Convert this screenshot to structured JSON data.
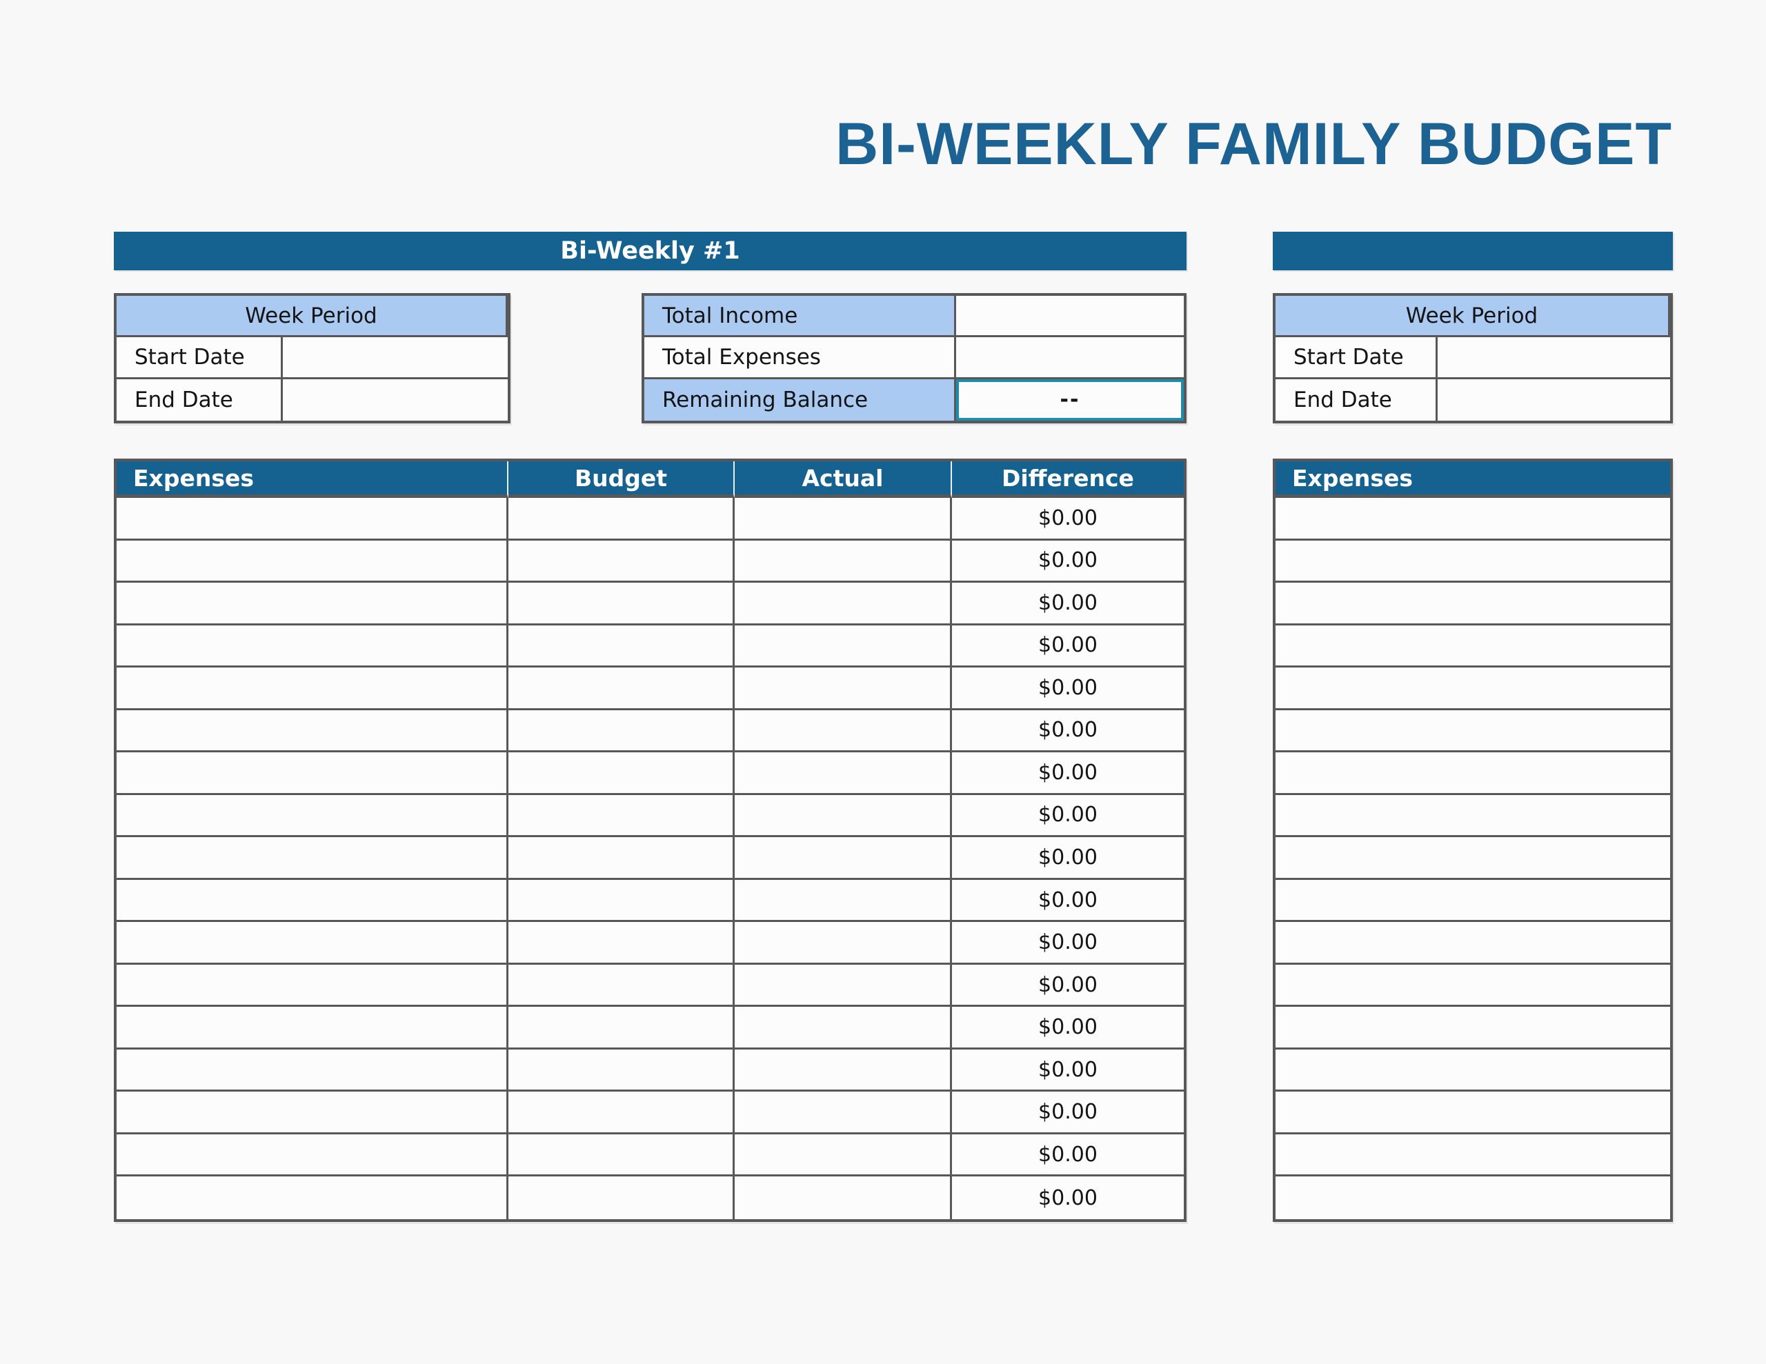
{
  "page": {
    "title": "BI-WEEKLY FAMILY BUDGET"
  },
  "colors": {
    "header_blue": "#15618F",
    "label_light_blue": "#ABCAF2",
    "title_blue": "#1C6293",
    "border_gray": "#58585A",
    "selection_teal": "#1F8DA9",
    "cell_bg": "#FCFCFC"
  },
  "section1": {
    "header": "Bi-Weekly #1",
    "week_period": {
      "title": "Week Period",
      "rows": [
        {
          "label": "Start Date",
          "value": ""
        },
        {
          "label": "End Date",
          "value": ""
        }
      ]
    },
    "summary": {
      "rows": [
        {
          "label": "Total Income",
          "value": ""
        },
        {
          "label": "Total Expenses",
          "value": ""
        },
        {
          "label": "Remaining Balance",
          "value": "--"
        }
      ]
    },
    "expenses_table": {
      "headers": [
        "Expenses",
        "Budget",
        "Actual",
        "Difference"
      ],
      "rows": [
        {
          "expense": "",
          "budget": "",
          "actual": "",
          "difference": "$0.00"
        },
        {
          "expense": "",
          "budget": "",
          "actual": "",
          "difference": "$0.00"
        },
        {
          "expense": "",
          "budget": "",
          "actual": "",
          "difference": "$0.00"
        },
        {
          "expense": "",
          "budget": "",
          "actual": "",
          "difference": "$0.00"
        },
        {
          "expense": "",
          "budget": "",
          "actual": "",
          "difference": "$0.00"
        },
        {
          "expense": "",
          "budget": "",
          "actual": "",
          "difference": "$0.00"
        },
        {
          "expense": "",
          "budget": "",
          "actual": "",
          "difference": "$0.00"
        },
        {
          "expense": "",
          "budget": "",
          "actual": "",
          "difference": "$0.00"
        },
        {
          "expense": "",
          "budget": "",
          "actual": "",
          "difference": "$0.00"
        },
        {
          "expense": "",
          "budget": "",
          "actual": "",
          "difference": "$0.00"
        },
        {
          "expense": "",
          "budget": "",
          "actual": "",
          "difference": "$0.00"
        },
        {
          "expense": "",
          "budget": "",
          "actual": "",
          "difference": "$0.00"
        },
        {
          "expense": "",
          "budget": "",
          "actual": "",
          "difference": "$0.00"
        },
        {
          "expense": "",
          "budget": "",
          "actual": "",
          "difference": "$0.00"
        },
        {
          "expense": "",
          "budget": "",
          "actual": "",
          "difference": "$0.00"
        },
        {
          "expense": "",
          "budget": "",
          "actual": "",
          "difference": "$0.00"
        },
        {
          "expense": "",
          "budget": "",
          "actual": "",
          "difference": "$0.00"
        }
      ]
    }
  },
  "section2": {
    "header": "",
    "week_period": {
      "title": "Week Period",
      "rows": [
        {
          "label": "Start Date",
          "value": ""
        },
        {
          "label": "End Date",
          "value": ""
        }
      ]
    },
    "expenses_table": {
      "headers": [
        "Expenses"
      ],
      "rows": [
        {
          "expense": ""
        },
        {
          "expense": ""
        },
        {
          "expense": ""
        },
        {
          "expense": ""
        },
        {
          "expense": ""
        },
        {
          "expense": ""
        },
        {
          "expense": ""
        },
        {
          "expense": ""
        },
        {
          "expense": ""
        },
        {
          "expense": ""
        },
        {
          "expense": ""
        },
        {
          "expense": ""
        },
        {
          "expense": ""
        },
        {
          "expense": ""
        },
        {
          "expense": ""
        },
        {
          "expense": ""
        },
        {
          "expense": ""
        }
      ]
    }
  }
}
